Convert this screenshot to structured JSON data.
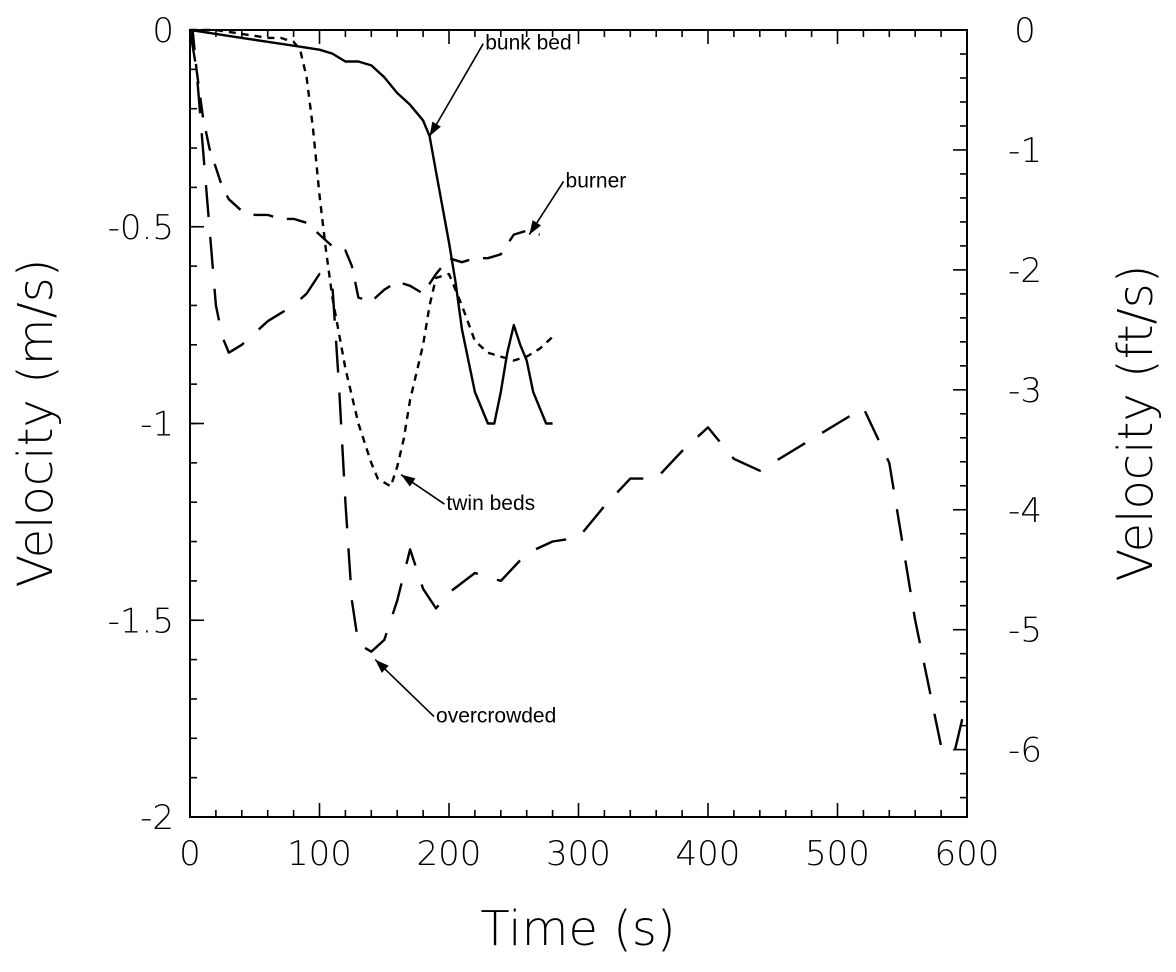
{
  "chart_data": {
    "type": "line",
    "title": "",
    "xlabel": "Time (s)",
    "ylabel_left": "Velocity (m/s)",
    "ylabel_right": "Velocity (ft/s)",
    "xlim": [
      0,
      600
    ],
    "ylim_left": [
      -2,
      0
    ],
    "ylim_right_ticks": [
      0,
      -1,
      -2,
      -3,
      -4,
      -5,
      -6
    ],
    "x_ticks": [
      0,
      100,
      200,
      300,
      400,
      500,
      600
    ],
    "y_ticks_left": [
      0,
      -0.5,
      -1,
      -1.5,
      -2
    ],
    "x_tick_labels": [
      "0",
      "100",
      "200",
      "300",
      "400",
      "500",
      "600"
    ],
    "y_tick_labels_left": [
      "0",
      "-0.5",
      "-1",
      "-1.5",
      "-2"
    ],
    "y_tick_labels_right": [
      "0",
      "-1",
      "-2",
      "-3",
      "-4",
      "-5",
      "-6"
    ],
    "grid": false,
    "series": [
      {
        "name": "bunk bed",
        "dash": "solid",
        "x": [
          0,
          20,
          40,
          60,
          80,
          100,
          110,
          120,
          130,
          140,
          150,
          160,
          170,
          180,
          185,
          190,
          200,
          205,
          210,
          220,
          230,
          235,
          240,
          245,
          250,
          255,
          260,
          265,
          270,
          275,
          280
        ],
        "y": [
          0,
          -0.01,
          -0.02,
          -0.03,
          -0.04,
          -0.05,
          -0.06,
          -0.08,
          -0.08,
          -0.09,
          -0.12,
          -0.16,
          -0.19,
          -0.23,
          -0.27,
          -0.36,
          -0.54,
          -0.64,
          -0.76,
          -0.92,
          -1.0,
          -1.0,
          -0.92,
          -0.82,
          -0.75,
          -0.8,
          -0.84,
          -0.92,
          -0.96,
          -1.0,
          -1.0
        ]
      },
      {
        "name": "twin beds",
        "dash": "short",
        "x": [
          0,
          20,
          40,
          60,
          70,
          80,
          85,
          90,
          95,
          100,
          105,
          110,
          120,
          130,
          140,
          145,
          150,
          155,
          160,
          165,
          170,
          180,
          185,
          190,
          200,
          210,
          220,
          230,
          240,
          250,
          260,
          270,
          280
        ],
        "y": [
          0,
          0,
          -0.01,
          -0.02,
          -0.02,
          -0.03,
          -0.05,
          -0.12,
          -0.25,
          -0.42,
          -0.56,
          -0.68,
          -0.86,
          -1.0,
          -1.1,
          -1.14,
          -1.15,
          -1.16,
          -1.11,
          -1.04,
          -0.94,
          -0.8,
          -0.7,
          -0.63,
          -0.62,
          -0.7,
          -0.79,
          -0.82,
          -0.83,
          -0.84,
          -0.83,
          -0.81,
          -0.78
        ]
      },
      {
        "name": "burner",
        "dash": "medium",
        "x": [
          2,
          5,
          10,
          15,
          20,
          25,
          30,
          40,
          50,
          60,
          70,
          80,
          90,
          100,
          110,
          120,
          125,
          130,
          140,
          150,
          160,
          170,
          180,
          190,
          200,
          210,
          220,
          230,
          240,
          250,
          260,
          270
        ],
        "y": [
          0,
          -0.1,
          -0.22,
          -0.3,
          -0.35,
          -0.4,
          -0.43,
          -0.46,
          -0.47,
          -0.47,
          -0.48,
          -0.48,
          -0.49,
          -0.52,
          -0.55,
          -0.56,
          -0.6,
          -0.68,
          -0.69,
          -0.66,
          -0.64,
          -0.65,
          -0.67,
          -0.62,
          -0.58,
          -0.59,
          -0.58,
          -0.58,
          -0.57,
          -0.52,
          -0.51,
          -0.52
        ]
      },
      {
        "name": "overcrowded",
        "dash": "long",
        "x": [
          0,
          5,
          10,
          15,
          20,
          25,
          30,
          40,
          50,
          60,
          70,
          80,
          90,
          100,
          110,
          115,
          120,
          125,
          130,
          140,
          150,
          160,
          170,
          180,
          190,
          200,
          220,
          240,
          260,
          280,
          300,
          320,
          340,
          360,
          380,
          400,
          420,
          440,
          460,
          480,
          500,
          520,
          540,
          560,
          580,
          590,
          600
        ],
        "y": [
          0,
          -0.1,
          -0.3,
          -0.5,
          -0.7,
          -0.78,
          -0.82,
          -0.8,
          -0.77,
          -0.74,
          -0.72,
          -0.7,
          -0.67,
          -0.62,
          -0.65,
          -0.9,
          -1.2,
          -1.45,
          -1.56,
          -1.58,
          -1.55,
          -1.45,
          -1.32,
          -1.42,
          -1.47,
          -1.43,
          -1.38,
          -1.4,
          -1.33,
          -1.3,
          -1.29,
          -1.21,
          -1.14,
          -1.14,
          -1.07,
          -1.01,
          -1.09,
          -1.12,
          -1.08,
          -1.04,
          -1.0,
          -0.96,
          -1.1,
          -1.5,
          -1.82,
          -1.84,
          -1.7
        ]
      }
    ],
    "annotations": [
      {
        "text": "bunk bed",
        "target": [
          185,
          -0.27
        ],
        "label_at": [
          228,
          -0.05
        ]
      },
      {
        "text": "burner",
        "target": [
          262,
          -0.52
        ],
        "label_at": [
          290,
          -0.4
        ]
      },
      {
        "text": "twin beds",
        "target": [
          163,
          -1.13
        ],
        "label_at": [
          198,
          -1.22
        ]
      },
      {
        "text": "overcrowded",
        "target": [
          143,
          -1.6
        ],
        "label_at": [
          190,
          -1.76
        ]
      }
    ]
  }
}
